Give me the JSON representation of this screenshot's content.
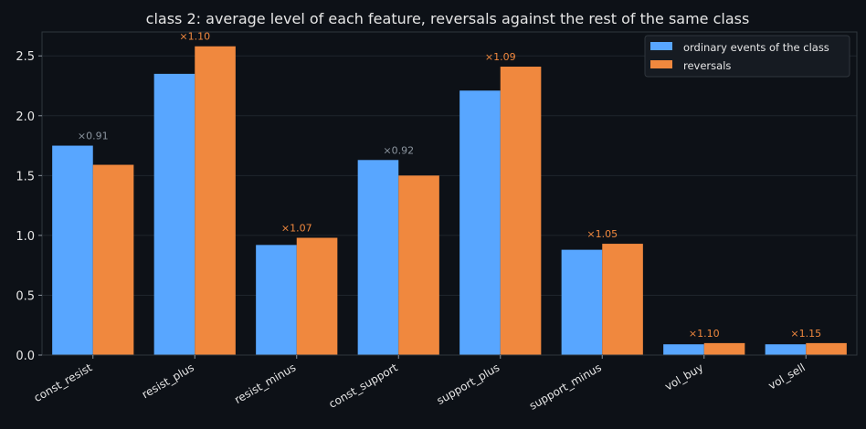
{
  "chart_data": {
    "type": "bar",
    "title": "class 2: average level of each feature, reversals against the rest of the same class",
    "xlabel": "",
    "ylabel": "",
    "ylim": [
      0,
      2.7
    ],
    "yticks": [
      "0.0",
      "0.5",
      "1.0",
      "1.5",
      "2.0",
      "2.5"
    ],
    "grid": true,
    "legend_position": "top-right",
    "categories": [
      "const_resist",
      "resist_plus",
      "resist_minus",
      "const_support",
      "support_plus",
      "support_minus",
      "vol_buy",
      "vol_sell"
    ],
    "series": [
      {
        "name": "ordinary events of the class",
        "color": "#58a6ff",
        "values": [
          1.75,
          2.35,
          0.92,
          1.63,
          2.21,
          0.88,
          0.09,
          0.09
        ]
      },
      {
        "name": "reversals",
        "color": "#f0883e",
        "values": [
          1.59,
          2.58,
          0.98,
          1.5,
          2.41,
          0.93,
          0.1,
          0.1
        ]
      }
    ],
    "ratio_labels": [
      "×0.91",
      "×1.10",
      "×1.07",
      "×0.92",
      "×1.09",
      "×1.05",
      "×1.10",
      "×1.15"
    ],
    "ratio_label_colors": {
      "below_one": "#8b949e",
      "above_one": "#f0883e"
    }
  }
}
